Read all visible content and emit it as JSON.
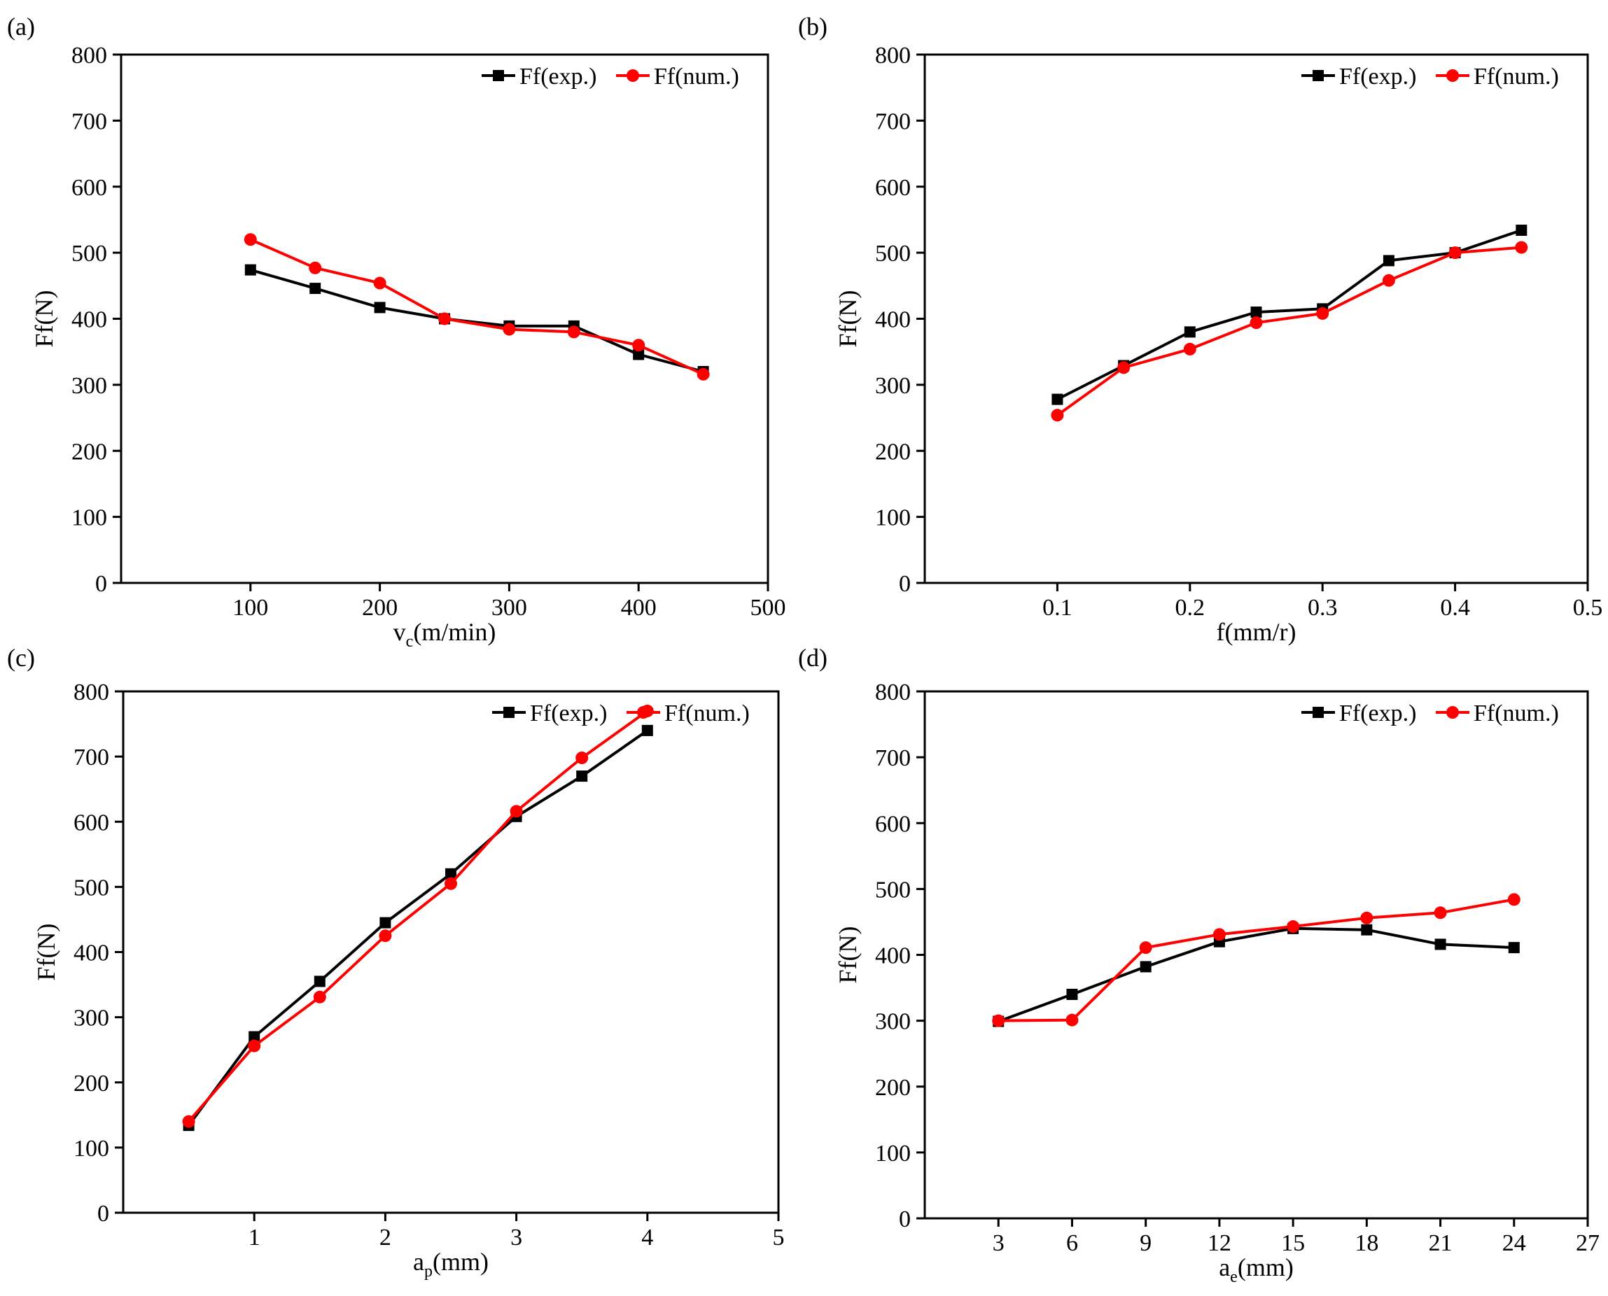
{
  "colors": {
    "exp": "#000000",
    "num": "#ff0000",
    "axis": "#000000"
  },
  "chart_data": [
    {
      "type": "line",
      "panel_label": "(a)",
      "xlabel_main": "v",
      "xlabel_sub": "c",
      "xlabel_rest": "(m/min)",
      "ylabel": "Ff(N)",
      "xlim": [
        0,
        500
      ],
      "ylim": [
        0,
        800
      ],
      "xticks": [
        100,
        200,
        300,
        400,
        500
      ],
      "xtick_labels": [
        "100",
        "200",
        "300",
        "400",
        "500"
      ],
      "yticks": [
        0,
        100,
        200,
        300,
        400,
        500,
        600,
        700,
        800
      ],
      "ytick_labels": [
        "0",
        "100",
        "200",
        "300",
        "400",
        "500",
        "600",
        "700",
        "800"
      ],
      "legend_position": "top-right",
      "series": [
        {
          "name": "Ff(exp.)",
          "marker": "square",
          "x": [
            100,
            150,
            200,
            250,
            300,
            350,
            400,
            450
          ],
          "values": [
            474,
            446,
            417,
            400,
            389,
            389,
            346,
            320
          ]
        },
        {
          "name": "Ff(num.)",
          "marker": "circle",
          "x": [
            100,
            150,
            200,
            250,
            300,
            350,
            400,
            450
          ],
          "values": [
            520,
            477,
            454,
            400,
            384,
            380,
            360,
            316
          ]
        }
      ]
    },
    {
      "type": "line",
      "panel_label": "(b)",
      "xlabel_main": "f(mm/r)",
      "xlabel_sub": "",
      "xlabel_rest": "",
      "ylabel": "Ff(N)",
      "xlim": [
        0,
        0.5
      ],
      "ylim": [
        0,
        800
      ],
      "xticks": [
        0.1,
        0.2,
        0.3,
        0.4,
        0.5
      ],
      "xtick_labels": [
        "0.1",
        "0.2",
        "0.3",
        "0.4",
        "0.5"
      ],
      "yticks": [
        0,
        100,
        200,
        300,
        400,
        500,
        600,
        700,
        800
      ],
      "ytick_labels": [
        "0",
        "100",
        "200",
        "300",
        "400",
        "500",
        "600",
        "700",
        "800"
      ],
      "legend_position": "top-right",
      "series": [
        {
          "name": "Ff(exp.)",
          "marker": "square",
          "x": [
            0.1,
            0.15,
            0.2,
            0.25,
            0.3,
            0.35,
            0.4,
            0.45
          ],
          "values": [
            278,
            329,
            380,
            410,
            415,
            488,
            500,
            534
          ]
        },
        {
          "name": "Ff(num.)",
          "marker": "circle",
          "x": [
            0.1,
            0.15,
            0.2,
            0.25,
            0.3,
            0.35,
            0.4,
            0.45
          ],
          "values": [
            254,
            326,
            354,
            394,
            408,
            458,
            500,
            508
          ]
        }
      ]
    },
    {
      "type": "line",
      "panel_label": "(c)",
      "xlabel_main": "a",
      "xlabel_sub": "p",
      "xlabel_rest": "(mm)",
      "ylabel": "Ff(N)",
      "xlim": [
        0,
        5
      ],
      "ylim": [
        0,
        800
      ],
      "xticks": [
        1,
        2,
        3,
        4,
        5
      ],
      "xtick_labels": [
        "1",
        "2",
        "3",
        "4",
        "5"
      ],
      "yticks": [
        0,
        100,
        200,
        300,
        400,
        500,
        600,
        700,
        800
      ],
      "ytick_labels": [
        "0",
        "100",
        "200",
        "300",
        "400",
        "500",
        "600",
        "700",
        "800"
      ],
      "legend_position": "top-right",
      "series": [
        {
          "name": "Ff(exp.)",
          "marker": "square",
          "x": [
            0.5,
            1,
            1.5,
            2,
            2.5,
            3,
            3.5,
            4
          ],
          "values": [
            134,
            270,
            355,
            445,
            520,
            608,
            670,
            740
          ]
        },
        {
          "name": "Ff(num.)",
          "marker": "circle",
          "x": [
            0.5,
            1,
            1.5,
            2,
            2.5,
            3,
            3.5,
            4
          ],
          "values": [
            140,
            256,
            331,
            425,
            505,
            616,
            698,
            770
          ]
        }
      ]
    },
    {
      "type": "line",
      "panel_label": "(d)",
      "xlabel_main": "a",
      "xlabel_sub": "e",
      "xlabel_rest": "(mm)",
      "ylabel": "Ff(N)",
      "xlim": [
        0,
        27
      ],
      "ylim": [
        0,
        800
      ],
      "xticks": [
        3,
        6,
        9,
        12,
        15,
        18,
        21,
        24,
        27
      ],
      "xtick_labels": [
        "3",
        "6",
        "9",
        "12",
        "15",
        "18",
        "21",
        "24",
        "27"
      ],
      "yticks": [
        0,
        100,
        200,
        300,
        400,
        500,
        600,
        700,
        800
      ],
      "ytick_labels": [
        "0",
        "100",
        "200",
        "300",
        "400",
        "500",
        "600",
        "700",
        "800"
      ],
      "legend_position": "top-right",
      "series": [
        {
          "name": "Ff(exp.)",
          "marker": "square",
          "x": [
            3,
            6,
            9,
            12,
            15,
            18,
            21,
            24
          ],
          "values": [
            299,
            340,
            382,
            420,
            440,
            438,
            416,
            411
          ]
        },
        {
          "name": "Ff(num.)",
          "marker": "circle",
          "x": [
            3,
            6,
            9,
            12,
            15,
            18,
            21,
            24
          ],
          "values": [
            300,
            301,
            411,
            431,
            443,
            456,
            464,
            484
          ]
        }
      ]
    }
  ]
}
